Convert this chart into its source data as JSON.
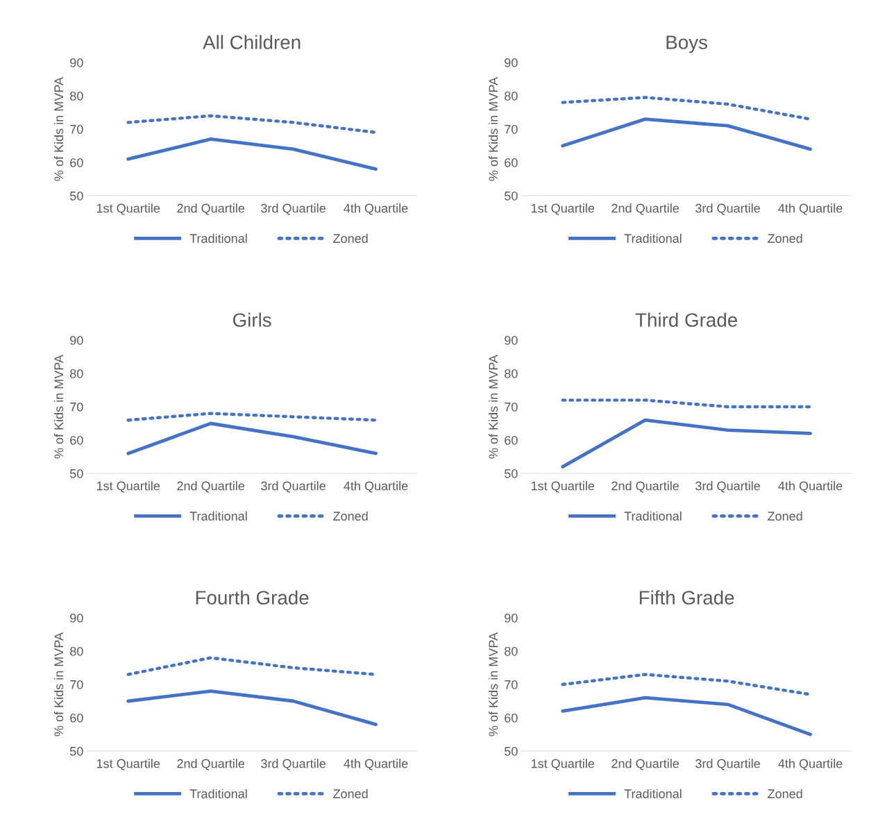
{
  "chart_data": [
    {
      "type": "line",
      "title": "All Children",
      "ylabel": "% of Kids in MVPA",
      "categories": [
        "1st Quartile",
        "2nd Quartile",
        "3rd Quartile",
        "4th Quartile"
      ],
      "ylim": [
        50,
        90
      ],
      "yticks": [
        50,
        60,
        70,
        80,
        90
      ],
      "grid": false,
      "legend": "bottom",
      "marker": "none",
      "series": [
        {
          "name": "Traditional",
          "color": "#4472c4",
          "line_style": "solid",
          "values": [
            61,
            67,
            64,
            58
          ]
        },
        {
          "name": "Zoned",
          "color": "#4472c4",
          "line_style": "dotted",
          "values": [
            72,
            74,
            72,
            69
          ]
        }
      ]
    },
    {
      "type": "line",
      "title": "Boys",
      "ylabel": "% of Kids in MVPA",
      "categories": [
        "1st Quartile",
        "2nd Quartile",
        "3rd Quartile",
        "4th Quartile"
      ],
      "ylim": [
        50,
        90
      ],
      "yticks": [
        50,
        60,
        70,
        80,
        90
      ],
      "grid": false,
      "legend": "bottom",
      "marker": "none",
      "series": [
        {
          "name": "Traditional",
          "color": "#4472c4",
          "line_style": "solid",
          "values": [
            65,
            73,
            71,
            64
          ]
        },
        {
          "name": "Zoned",
          "color": "#4472c4",
          "line_style": "dotted",
          "values": [
            78,
            79.5,
            77.5,
            73
          ]
        }
      ]
    },
    {
      "type": "line",
      "title": "Girls",
      "ylabel": "% of Kids in MVPA",
      "categories": [
        "1st Quartile",
        "2nd Quartile",
        "3rd Quartile",
        "4th Quartile"
      ],
      "ylim": [
        50,
        90
      ],
      "yticks": [
        50,
        60,
        70,
        80,
        90
      ],
      "grid": false,
      "legend": "bottom",
      "marker": "none",
      "series": [
        {
          "name": "Traditional",
          "color": "#4472c4",
          "line_style": "solid",
          "values": [
            56,
            65,
            61,
            56
          ]
        },
        {
          "name": "Zoned",
          "color": "#4472c4",
          "line_style": "dotted",
          "values": [
            66,
            68,
            67,
            66
          ]
        }
      ]
    },
    {
      "type": "line",
      "title": "Third Grade",
      "ylabel": "% of Kids in MVPA",
      "categories": [
        "1st Quartile",
        "2nd Quartile",
        "3rd Quartile",
        "4th Quartile"
      ],
      "ylim": [
        50,
        90
      ],
      "yticks": [
        50,
        60,
        70,
        80,
        90
      ],
      "grid": false,
      "legend": "bottom",
      "marker": "none",
      "series": [
        {
          "name": "Traditional",
          "color": "#4472c4",
          "line_style": "solid",
          "values": [
            52,
            66,
            63,
            62
          ]
        },
        {
          "name": "Zoned",
          "color": "#4472c4",
          "line_style": "dotted",
          "values": [
            72,
            72,
            70,
            70
          ]
        }
      ]
    },
    {
      "type": "line",
      "title": "Fourth Grade",
      "ylabel": "% of Kids in MVPA",
      "categories": [
        "1st Quartile",
        "2nd Quartile",
        "3rd Quartile",
        "4th Quartile"
      ],
      "ylim": [
        50,
        90
      ],
      "yticks": [
        50,
        60,
        70,
        80,
        90
      ],
      "grid": false,
      "legend": "bottom",
      "marker": "none",
      "series": [
        {
          "name": "Traditional",
          "color": "#4472c4",
          "line_style": "solid",
          "values": [
            65,
            68,
            65,
            58
          ]
        },
        {
          "name": "Zoned",
          "color": "#4472c4",
          "line_style": "dotted",
          "values": [
            73,
            78,
            75,
            73
          ]
        }
      ]
    },
    {
      "type": "line",
      "title": "Fifth Grade",
      "ylabel": "% of Kids in MVPA",
      "categories": [
        "1st Quartile",
        "2nd Quartile",
        "3rd Quartile",
        "4th Quartile"
      ],
      "ylim": [
        50,
        90
      ],
      "yticks": [
        50,
        60,
        70,
        80,
        90
      ],
      "grid": false,
      "legend": "bottom",
      "marker": "none",
      "series": [
        {
          "name": "Traditional",
          "color": "#4472c4",
          "line_style": "solid",
          "values": [
            62,
            66,
            64,
            55
          ]
        },
        {
          "name": "Zoned",
          "color": "#4472c4",
          "line_style": "dotted",
          "values": [
            70,
            73,
            71,
            67
          ]
        }
      ]
    }
  ]
}
